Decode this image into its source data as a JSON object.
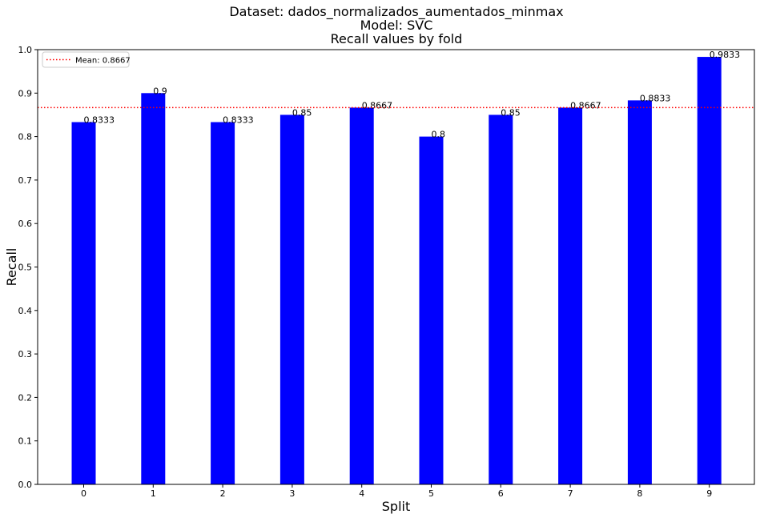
{
  "chart_data": {
    "type": "bar",
    "title_lines": [
      "Dataset: dados_normalizados_aumentados_minmax",
      "Model: SVC",
      "Recall values by fold"
    ],
    "xlabel": "Split",
    "ylabel": "Recall",
    "categories": [
      "0",
      "1",
      "2",
      "3",
      "4",
      "5",
      "6",
      "7",
      "8",
      "9"
    ],
    "values": [
      0.8333,
      0.9,
      0.8333,
      0.85,
      0.8667,
      0.8,
      0.85,
      0.8667,
      0.8833,
      0.9833
    ],
    "data_labels": [
      "0.8333",
      "0.9",
      "0.8333",
      "0.85",
      "0.8667",
      "0.8",
      "0.85",
      "0.8667",
      "0.8833",
      "0.9833"
    ],
    "ylim": [
      0,
      1.0
    ],
    "yticks": [
      "0.0",
      "0.1",
      "0.2",
      "0.3",
      "0.4",
      "0.5",
      "0.6",
      "0.7",
      "0.8",
      "0.9",
      "1.0"
    ],
    "mean": {
      "value": 0.8667,
      "label": "Mean: 0.8667",
      "color": "#ff0000",
      "style": "dotted"
    },
    "bar_color": "#0000ff",
    "legend_position": "upper-left",
    "grid": false
  }
}
